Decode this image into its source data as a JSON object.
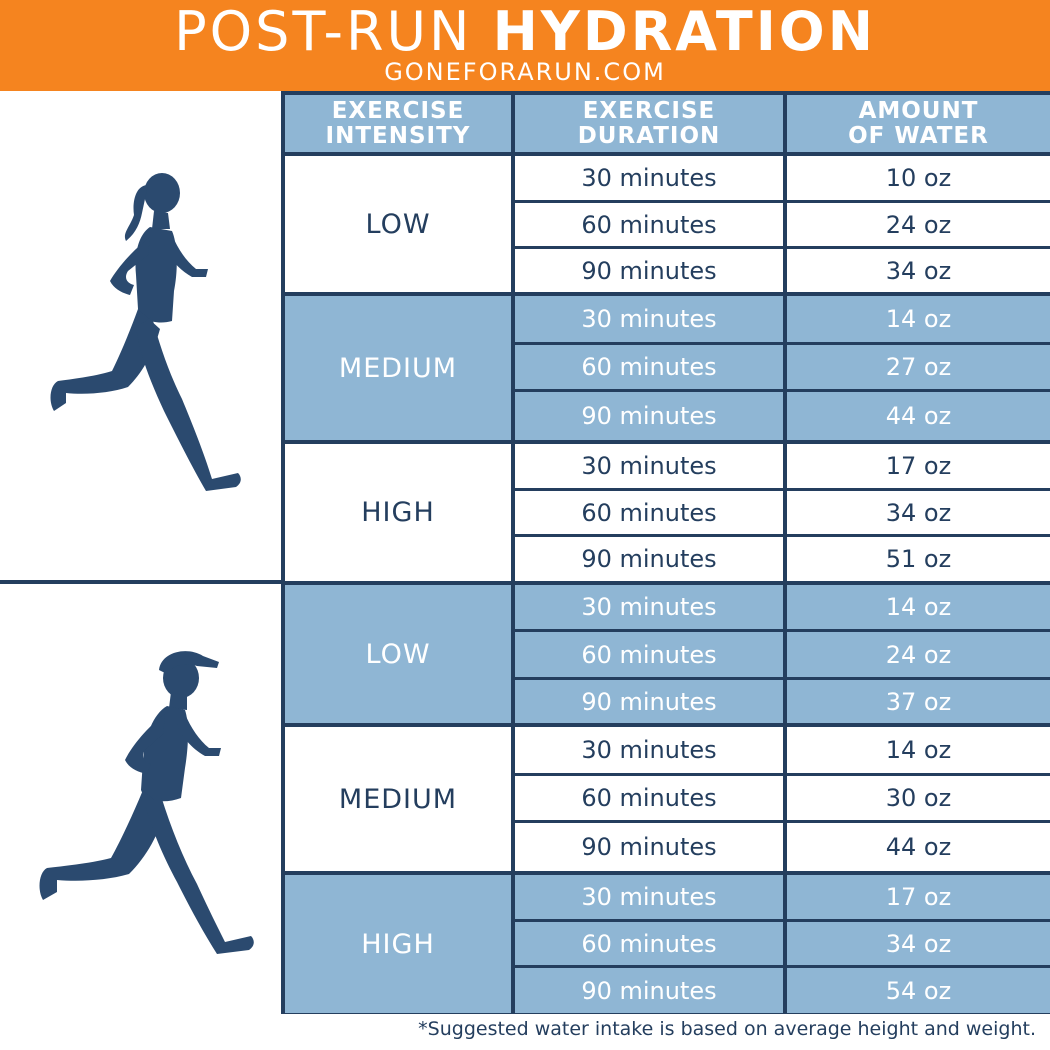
{
  "header": {
    "title_thin": "POST-RUN",
    "title_bold": "HYDRATION",
    "site": "GONEFORARUN.COM"
  },
  "columns": [
    {
      "line1": "EXERCISE",
      "line2": "INTENSITY"
    },
    {
      "line1": "EXERCISE",
      "line2": "DURATION"
    },
    {
      "line1": "AMOUNT",
      "line2": "OF WATER"
    }
  ],
  "groups": [
    {
      "runner": "female-runner-icon",
      "blocks": [
        {
          "intensity": "LOW",
          "rows": [
            {
              "duration": "30 minutes",
              "water": "10 oz"
            },
            {
              "duration": "60 minutes",
              "water": "24 oz"
            },
            {
              "duration": "90 minutes",
              "water": "34 oz"
            }
          ]
        },
        {
          "intensity": "MEDIUM",
          "rows": [
            {
              "duration": "30 minutes",
              "water": "14 oz"
            },
            {
              "duration": "60 minutes",
              "water": "27 oz"
            },
            {
              "duration": "90 minutes",
              "water": "44 oz"
            }
          ]
        },
        {
          "intensity": "HIGH",
          "rows": [
            {
              "duration": "30 minutes",
              "water": "17 oz"
            },
            {
              "duration": "60 minutes",
              "water": "34 oz"
            },
            {
              "duration": "90 minutes",
              "water": "51 oz"
            }
          ]
        }
      ]
    },
    {
      "runner": "male-runner-icon",
      "blocks": [
        {
          "intensity": "LOW",
          "rows": [
            {
              "duration": "30 minutes",
              "water": "14 oz"
            },
            {
              "duration": "60 minutes",
              "water": "24 oz"
            },
            {
              "duration": "90 minutes",
              "water": "37 oz"
            }
          ]
        },
        {
          "intensity": "MEDIUM",
          "rows": [
            {
              "duration": "30 minutes",
              "water": "14 oz"
            },
            {
              "duration": "60 minutes",
              "water": "30 oz"
            },
            {
              "duration": "90 minutes",
              "water": "44 oz"
            }
          ]
        },
        {
          "intensity": "HIGH",
          "rows": [
            {
              "duration": "30 minutes",
              "water": "17 oz"
            },
            {
              "duration": "60 minutes",
              "water": "34 oz"
            },
            {
              "duration": "90 minutes",
              "water": "54 oz"
            }
          ]
        }
      ]
    }
  ],
  "footnote": "*Suggested water intake is based on average height and weight.",
  "colors": {
    "banner": "#f5841f",
    "navy": "#243e5e",
    "light_blue": "#8fb6d4",
    "white": "#ffffff"
  }
}
